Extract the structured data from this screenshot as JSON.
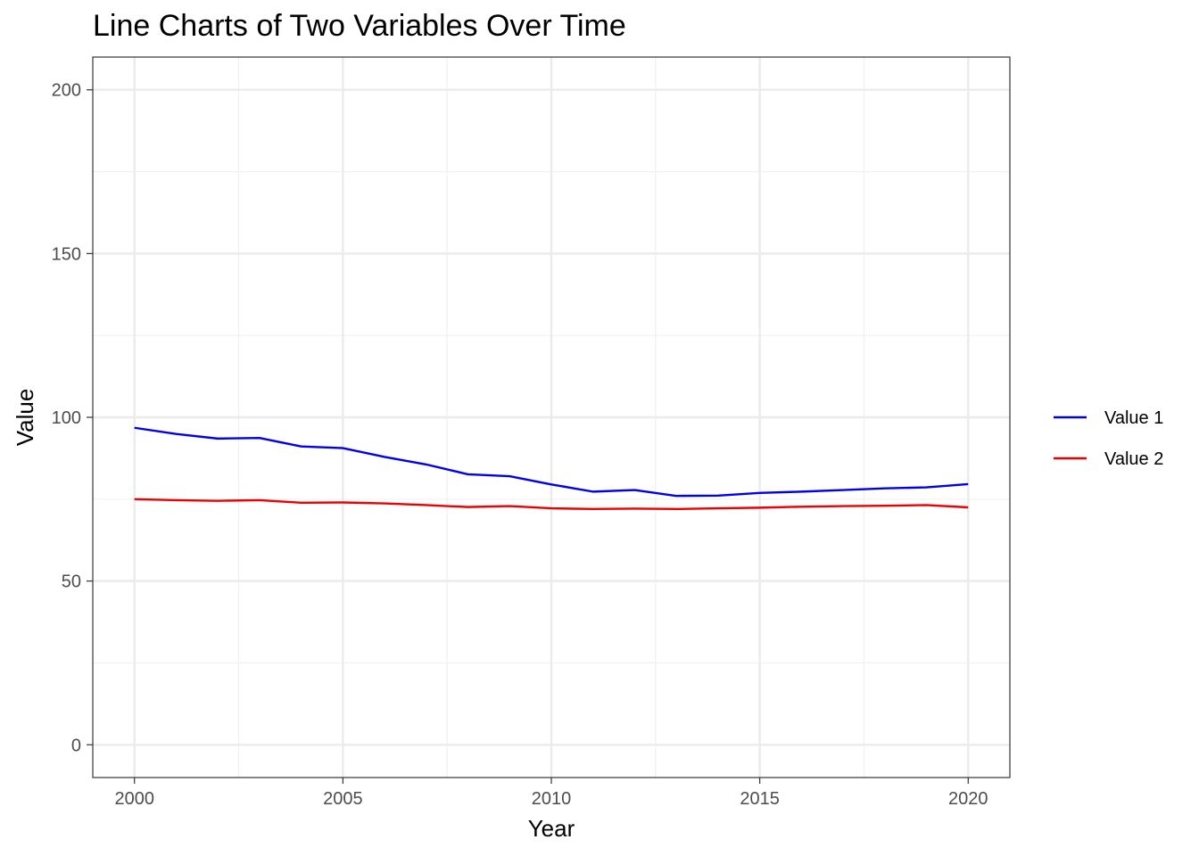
{
  "chart_data": {
    "type": "line",
    "title": "Line Charts of Two Variables Over Time",
    "xlabel": "Year",
    "ylabel": "Value",
    "x": [
      2000,
      2001,
      2002,
      2003,
      2004,
      2005,
      2006,
      2007,
      2008,
      2009,
      2010,
      2011,
      2012,
      2013,
      2014,
      2015,
      2016,
      2017,
      2018,
      2019,
      2020
    ],
    "xlim": [
      1999,
      2021
    ],
    "ylim": [
      -10,
      210
    ],
    "xticks": [
      "2000",
      "2005",
      "2010",
      "2015",
      "2020"
    ],
    "yticks": [
      "0",
      "50",
      "100",
      "150",
      "200"
    ],
    "grid": true,
    "legend_position": "right",
    "series": [
      {
        "name": "Value 1",
        "color": "#0000ee",
        "values": [
          96.8,
          94.9,
          93.5,
          93.7,
          91.1,
          90.6,
          87.9,
          85.6,
          82.6,
          82.0,
          79.5,
          77.3,
          77.8,
          76.0,
          76.1,
          76.9,
          77.3,
          77.8,
          78.3,
          78.6,
          79.6
        ]
      },
      {
        "name": "Value 2",
        "color": "#ee0000",
        "values": [
          75.0,
          74.7,
          74.5,
          74.7,
          73.9,
          74.0,
          73.7,
          73.2,
          72.6,
          72.9,
          72.2,
          72.0,
          72.1,
          72.0,
          72.2,
          72.4,
          72.7,
          72.9,
          73.0,
          73.2,
          72.5
        ]
      }
    ]
  }
}
